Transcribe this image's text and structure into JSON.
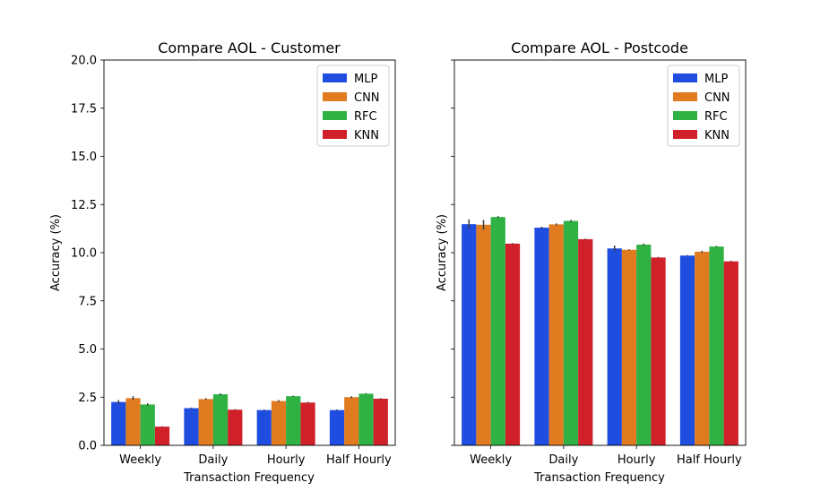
{
  "chart_data": [
    {
      "type": "bar",
      "title": "Compare AOL - Customer",
      "xlabel": "Transaction Frequency",
      "ylabel": "Accuracy (%)",
      "ylim": [
        0,
        20
      ],
      "yticks": [
        "0.0",
        "2.5",
        "5.0",
        "7.5",
        "10.0",
        "12.5",
        "15.0",
        "17.5",
        "20.0"
      ],
      "categories": [
        "Weekly",
        "Daily",
        "Hourly",
        "Half Hourly"
      ],
      "legend_position": "top-right",
      "series": [
        {
          "name": "MLP",
          "color": "#1f4de0",
          "values": [
            2.25,
            1.93,
            1.83,
            1.83
          ],
          "errors": [
            0.1,
            0.03,
            0.03,
            0.03
          ]
        },
        {
          "name": "CNN",
          "color": "#e07b1f",
          "values": [
            2.45,
            2.4,
            2.3,
            2.5
          ],
          "errors": [
            0.1,
            0.05,
            0.05,
            0.05
          ]
        },
        {
          "name": "RFC",
          "color": "#2fb144",
          "values": [
            2.12,
            2.65,
            2.55,
            2.68
          ],
          "errors": [
            0.06,
            0.05,
            0.03,
            0.03
          ]
        },
        {
          "name": "KNN",
          "color": "#d0202a",
          "values": [
            0.97,
            1.85,
            2.22,
            2.42
          ],
          "errors": [
            0.02,
            0.03,
            0.03,
            0.03
          ]
        }
      ]
    },
    {
      "type": "bar",
      "title": "Compare AOL - Postcode",
      "xlabel": "Transaction Frequency",
      "ylabel": "Accuracy (%)",
      "ylim": [
        0,
        20
      ],
      "categories": [
        "Weekly",
        "Daily",
        "Hourly",
        "Half Hourly"
      ],
      "legend_position": "top-right",
      "series": [
        {
          "name": "MLP",
          "color": "#1f4de0",
          "values": [
            11.48,
            11.3,
            10.22,
            9.85
          ],
          "errors": [
            0.25,
            0.05,
            0.15,
            0.03
          ]
        },
        {
          "name": "CNN",
          "color": "#e07b1f",
          "values": [
            11.45,
            11.47,
            10.15,
            10.05
          ],
          "errors": [
            0.25,
            0.05,
            0.03,
            0.05
          ]
        },
        {
          "name": "RFC",
          "color": "#2fb144",
          "values": [
            11.85,
            11.65,
            10.42,
            10.32
          ],
          "errors": [
            0.05,
            0.05,
            0.05,
            0.03
          ]
        },
        {
          "name": "KNN",
          "color": "#d0202a",
          "values": [
            10.47,
            10.7,
            9.75,
            9.55
          ],
          "errors": [
            0.03,
            0.03,
            0.03,
            0.03
          ]
        }
      ]
    }
  ]
}
